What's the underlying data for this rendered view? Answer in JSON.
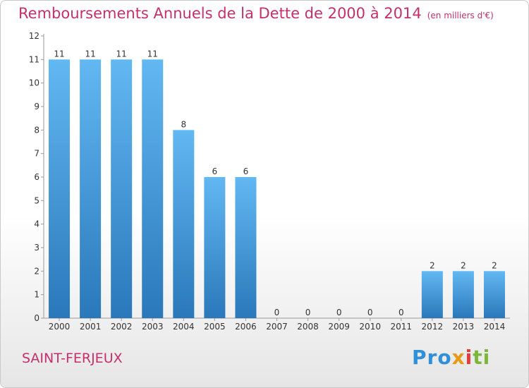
{
  "chart_data": {
    "type": "bar",
    "title": "Remboursements Annuels de la Dette de 2000 à 2014",
    "subtitle": "(en milliers d'€)",
    "categories": [
      "2000",
      "2001",
      "2002",
      "2003",
      "2004",
      "2005",
      "2006",
      "2007",
      "2008",
      "2009",
      "2010",
      "2011",
      "2012",
      "2013",
      "2014"
    ],
    "values": [
      11,
      11,
      11,
      11,
      8,
      6,
      6,
      0,
      0,
      0,
      0,
      0,
      2,
      2,
      2
    ],
    "ylim": [
      0,
      12
    ],
    "yticks": [
      0,
      1,
      2,
      3,
      4,
      5,
      6,
      7,
      8,
      9,
      10,
      11,
      12
    ],
    "grid": false,
    "colors": {
      "bar_light": "#5db3ee",
      "bar_dark": "#2f7fc0",
      "title": "#c4306c"
    }
  },
  "commune": "SAINT-FERJEUX",
  "logo": {
    "p1": "Pro",
    "p2": "x",
    "p3": "i",
    "p4": "ti"
  }
}
